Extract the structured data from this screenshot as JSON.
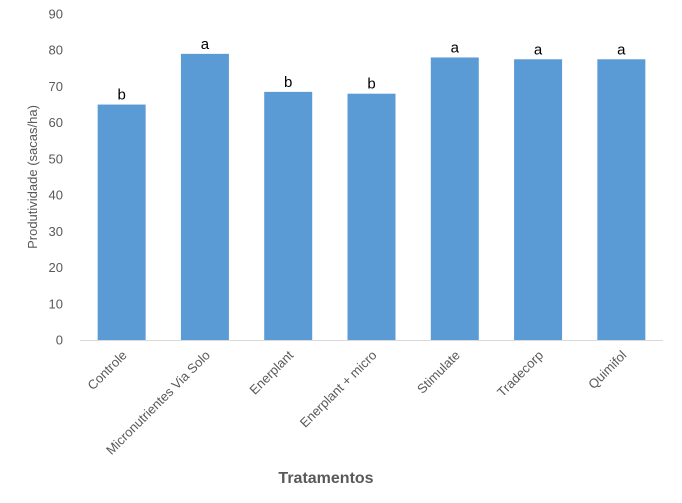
{
  "chart_data": {
    "type": "bar",
    "categories": [
      "Controle",
      "Micronutrientes Via Solo",
      "Enerplant",
      "Enerplant + micro",
      "Stimulate",
      "Tradecorp",
      "Quimifol"
    ],
    "values": [
      65,
      79,
      68.5,
      68,
      78,
      77.5,
      77.5
    ],
    "data_labels": [
      "b",
      "a",
      "b",
      "b",
      "a",
      "a",
      "a"
    ],
    "title": "",
    "xlabel": "Tratamentos",
    "ylabel": "Produtividade (sacas/ha)",
    "ylim": [
      0,
      90
    ],
    "yticks": [
      0,
      10,
      20,
      30,
      40,
      50,
      60,
      70,
      80,
      90
    ],
    "grid": false,
    "legend": "none",
    "bar_color": "#5B9BD5",
    "axis_color": "#D9D9D9"
  }
}
